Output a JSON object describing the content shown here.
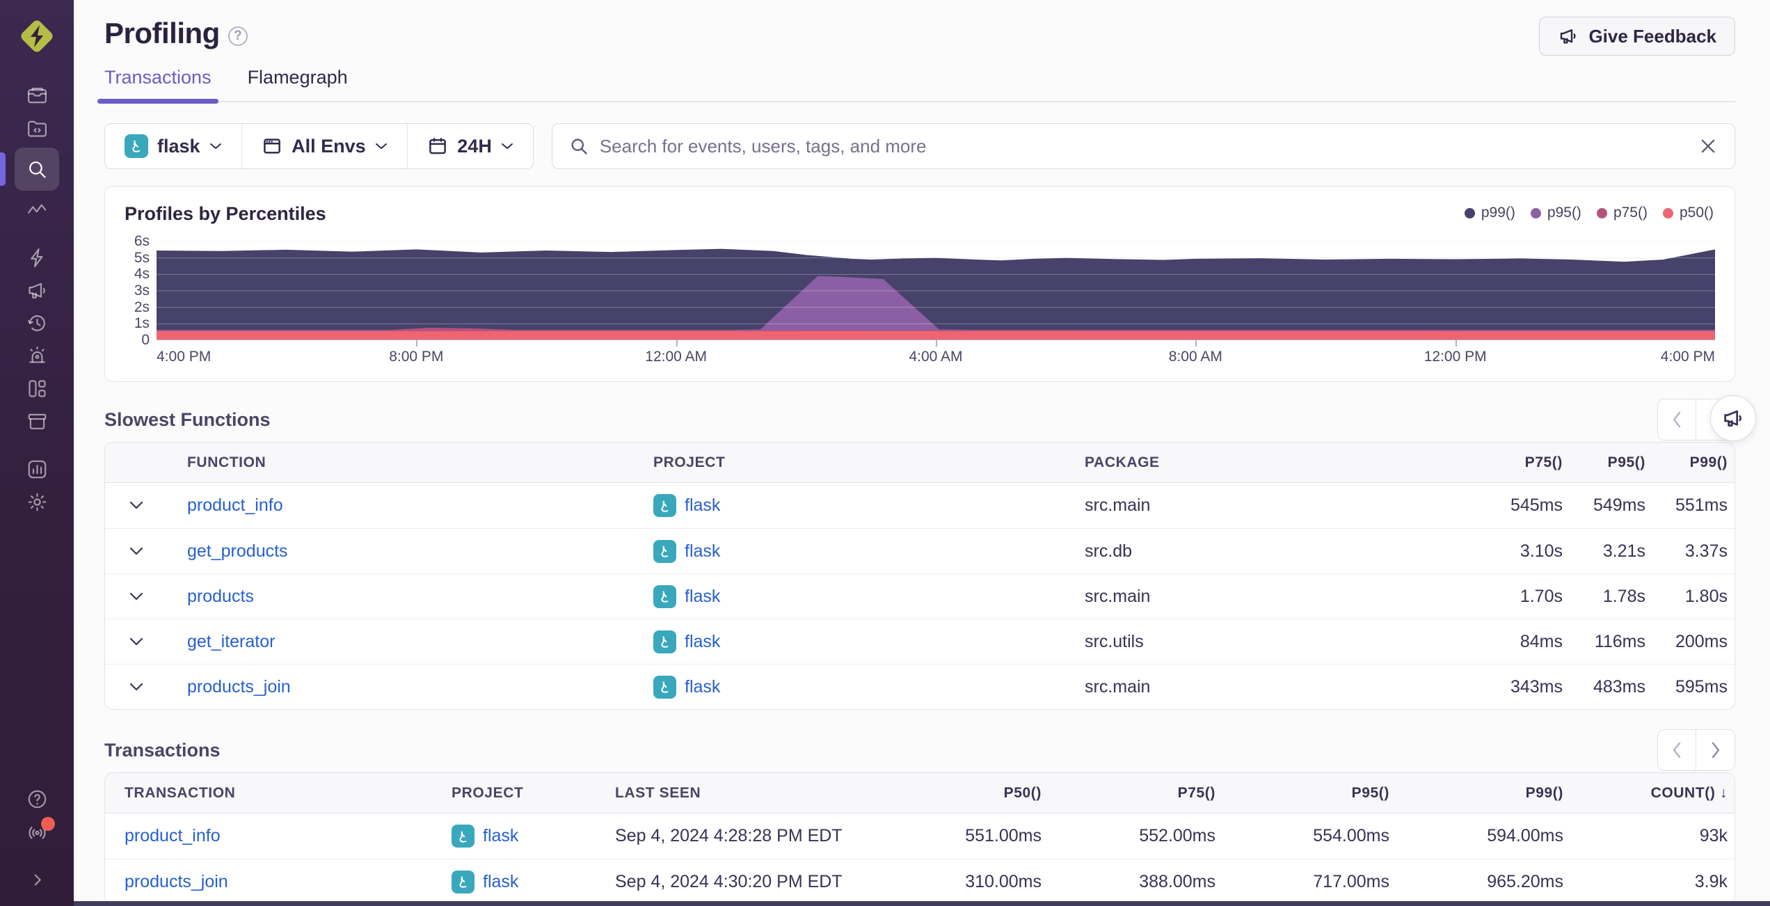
{
  "app": {
    "vendor_logo": "sentry-logo",
    "accent_color": "#6a5dc6",
    "sidebar_bg": "#33203f"
  },
  "sidebar": {
    "icons": [
      "issues",
      "projects",
      "explore-search",
      "traces",
      "insights",
      "user-feedback",
      "replays",
      "alerts",
      "dashboards",
      "releases",
      "stats",
      "settings"
    ],
    "bottom_icons": [
      "help",
      "whats-new",
      "collapse"
    ],
    "active_icon": "explore-search"
  },
  "header": {
    "title": "Profiling",
    "give_feedback_label": "Give Feedback",
    "tabs": [
      {
        "label": "Transactions",
        "active": true
      },
      {
        "label": "Flamegraph",
        "active": false
      }
    ]
  },
  "filters": {
    "project": "flask",
    "environment": "All Envs",
    "date_range": "24H"
  },
  "search": {
    "placeholder": "Search for events, users, tags, and more"
  },
  "chart_data": {
    "type": "area",
    "title": "Profiles by Percentiles",
    "xlabel": "",
    "ylabel": "",
    "ylim": [
      0,
      6
    ],
    "y_ticks": [
      "0",
      "1s",
      "2s",
      "3s",
      "4s",
      "5s",
      "6s"
    ],
    "x_tick_labels": [
      "4:00 PM",
      "8:00 PM",
      "12:00 AM",
      "4:00 AM",
      "8:00 AM",
      "12:00 PM",
      "4:00 PM"
    ],
    "x_domain_hours": [
      0,
      24
    ],
    "grid": true,
    "legend_position": "top-right",
    "series": [
      {
        "name": "p99()",
        "color": "#46426a",
        "points": [
          [
            0,
            5.45
          ],
          [
            1,
            5.42
          ],
          [
            2,
            5.5
          ],
          [
            3,
            5.38
          ],
          [
            4,
            5.52
          ],
          [
            5,
            5.33
          ],
          [
            6,
            5.45
          ],
          [
            7,
            5.36
          ],
          [
            8,
            5.48
          ],
          [
            8.7,
            5.55
          ],
          [
            9.5,
            5.42
          ],
          [
            10,
            5.18
          ],
          [
            10.7,
            4.95
          ],
          [
            11,
            4.9
          ],
          [
            11.5,
            4.97
          ],
          [
            12,
            5.0
          ],
          [
            12.5,
            4.92
          ],
          [
            13,
            4.85
          ],
          [
            13.5,
            4.95
          ],
          [
            14,
            5.0
          ],
          [
            14.8,
            4.93
          ],
          [
            15.5,
            4.88
          ],
          [
            16,
            4.95
          ],
          [
            17,
            4.98
          ],
          [
            18,
            4.9
          ],
          [
            19,
            4.95
          ],
          [
            20,
            4.92
          ],
          [
            21,
            4.97
          ],
          [
            21.8,
            4.9
          ],
          [
            22.6,
            4.77
          ],
          [
            23.2,
            4.9
          ],
          [
            24,
            5.52
          ]
        ]
      },
      {
        "name": "p95()",
        "color": "#8c5fa5",
        "points": [
          [
            0,
            0.63
          ],
          [
            8.8,
            0.63
          ],
          [
            9.3,
            0.66
          ],
          [
            10.18,
            3.9
          ],
          [
            10.5,
            3.86
          ],
          [
            11.19,
            3.72
          ],
          [
            12.05,
            0.66
          ],
          [
            12.6,
            0.63
          ],
          [
            24,
            0.63
          ]
        ]
      },
      {
        "name": "p75()",
        "color": "#b5537f",
        "points": [
          [
            0,
            0.6
          ],
          [
            3.5,
            0.6
          ],
          [
            4.2,
            0.76
          ],
          [
            4.9,
            0.72
          ],
          [
            5.6,
            0.62
          ],
          [
            24,
            0.6
          ]
        ]
      },
      {
        "name": "p50()",
        "color": "#ee6470",
        "points": [
          [
            0,
            0.55
          ],
          [
            24,
            0.55
          ]
        ]
      }
    ]
  },
  "slowest_functions": {
    "title": "Slowest Functions",
    "columns": [
      "FUNCTION",
      "PROJECT",
      "PACKAGE",
      "P75()",
      "P95()",
      "P99()"
    ],
    "rows": [
      {
        "function": "product_info",
        "project": "flask",
        "package": "src.main",
        "p75": "545ms",
        "p95": "549ms",
        "p99": "551ms"
      },
      {
        "function": "get_products",
        "project": "flask",
        "package": "src.db",
        "p75": "3.10s",
        "p95": "3.21s",
        "p99": "3.37s"
      },
      {
        "function": "products",
        "project": "flask",
        "package": "src.main",
        "p75": "1.70s",
        "p95": "1.78s",
        "p99": "1.80s"
      },
      {
        "function": "get_iterator",
        "project": "flask",
        "package": "src.utils",
        "p75": "84ms",
        "p95": "116ms",
        "p99": "200ms"
      },
      {
        "function": "products_join",
        "project": "flask",
        "package": "src.main",
        "p75": "343ms",
        "p95": "483ms",
        "p99": "595ms"
      }
    ]
  },
  "transactions": {
    "title": "Transactions",
    "columns": [
      "TRANSACTION",
      "PROJECT",
      "LAST SEEN",
      "P50()",
      "P75()",
      "P95()",
      "P99()",
      "COUNT()"
    ],
    "sort_column": "COUNT()",
    "sort_direction": "desc",
    "sort_arrow": "↓",
    "rows": [
      {
        "transaction": "product_info",
        "project": "flask",
        "last_seen": "Sep 4, 2024 4:28:28 PM EDT",
        "p50": "551.00ms",
        "p75": "552.00ms",
        "p95": "554.00ms",
        "p99": "594.00ms",
        "count": "93k"
      },
      {
        "transaction": "products_join",
        "project": "flask",
        "last_seen": "Sep 4, 2024 4:30:20 PM EDT",
        "p50": "310.00ms",
        "p75": "388.00ms",
        "p95": "717.00ms",
        "p99": "965.20ms",
        "count": "3.9k"
      }
    ]
  }
}
